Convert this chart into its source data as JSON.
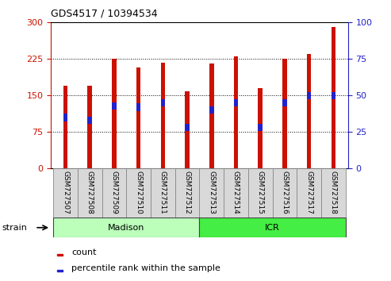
{
  "title": "GDS4517 / 10394534",
  "samples": [
    "GSM727507",
    "GSM727508",
    "GSM727509",
    "GSM727510",
    "GSM727511",
    "GSM727512",
    "GSM727513",
    "GSM727514",
    "GSM727515",
    "GSM727516",
    "GSM727517",
    "GSM727518"
  ],
  "counts": [
    170,
    170,
    225,
    207,
    218,
    158,
    215,
    230,
    165,
    226,
    235,
    290
  ],
  "percentile_ranks": [
    35,
    33,
    43,
    42,
    45,
    28,
    40,
    45,
    28,
    45,
    50,
    50
  ],
  "bar_color": "#cc1100",
  "percentile_color": "#2222cc",
  "ylim_left": [
    0,
    300
  ],
  "ylim_right": [
    0,
    100
  ],
  "yticks_left": [
    0,
    75,
    150,
    225,
    300
  ],
  "yticks_right": [
    0,
    25,
    50,
    75,
    100
  ],
  "groups": [
    {
      "label": "Madison",
      "start": 0,
      "end": 6,
      "color": "#bbffbb"
    },
    {
      "label": "ICR",
      "start": 6,
      "end": 12,
      "color": "#44ee44"
    }
  ],
  "strain_label": "strain",
  "legend_count": "count",
  "legend_percentile": "percentile rank within the sample",
  "bar_width": 0.18,
  "left_axis_color": "#cc1100",
  "right_axis_color": "#2222cc",
  "background_color": "#ffffff",
  "plot_bg_color": "#ffffff"
}
